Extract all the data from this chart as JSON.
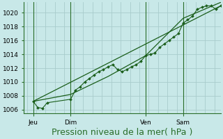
{
  "background_color": "#c8e8e8",
  "grid_color": "#a8cccc",
  "line_color": "#1a5e1a",
  "marker_color": "#1a5e1a",
  "ylabel_ticks": [
    1006,
    1008,
    1010,
    1012,
    1014,
    1016,
    1018,
    1020
  ],
  "ylim": [
    1005.5,
    1021.5
  ],
  "xlabel": "Pression niveau de la mer( hPa )",
  "xlabel_fontsize": 9,
  "tick_fontsize": 6.5,
  "xtick_labels": [
    "Jeu",
    "Dim",
    "Ven",
    "Sam"
  ],
  "xtick_positions": [
    4,
    28,
    76,
    100
  ],
  "total_hours": 124,
  "xlim": [
    -2,
    124
  ],
  "series1": [
    [
      4,
      1007.2
    ],
    [
      7,
      1006.3
    ],
    [
      10,
      1006.2
    ],
    [
      13,
      1007.0
    ],
    [
      28,
      1007.5
    ],
    [
      31,
      1008.8
    ],
    [
      34,
      1009.3
    ],
    [
      37,
      1010.0
    ],
    [
      40,
      1010.5
    ],
    [
      43,
      1011.0
    ],
    [
      46,
      1011.5
    ],
    [
      49,
      1011.8
    ],
    [
      52,
      1012.2
    ],
    [
      55,
      1012.5
    ],
    [
      58,
      1011.8
    ],
    [
      61,
      1011.5
    ],
    [
      64,
      1011.8
    ],
    [
      67,
      1012.2
    ],
    [
      70,
      1012.5
    ],
    [
      73,
      1013.0
    ],
    [
      76,
      1013.8
    ],
    [
      79,
      1014.0
    ],
    [
      82,
      1014.2
    ],
    [
      85,
      1015.0
    ],
    [
      88,
      1015.5
    ],
    [
      91,
      1016.0
    ],
    [
      94,
      1016.5
    ],
    [
      97,
      1017.0
    ],
    [
      100,
      1018.5
    ],
    [
      103,
      1019.0
    ],
    [
      106,
      1019.5
    ],
    [
      109,
      1020.5
    ],
    [
      112,
      1020.8
    ],
    [
      115,
      1021.0
    ],
    [
      118,
      1021.0
    ],
    [
      121,
      1020.5
    ],
    [
      124,
      1021.0
    ]
  ],
  "series2_straight": [
    [
      4,
      1007.2
    ],
    [
      124,
      1021.0
    ]
  ],
  "series3_straight": [
    [
      4,
      1007.2
    ],
    [
      28,
      1008.2
    ],
    [
      52,
      1010.8
    ],
    [
      76,
      1013.8
    ],
    [
      100,
      1019.2
    ],
    [
      124,
      1021.5
    ]
  ],
  "vline_positions": [
    4,
    28,
    76,
    100
  ],
  "vline_color": "#2a6e2a",
  "spine_color": "#2a6e2a"
}
